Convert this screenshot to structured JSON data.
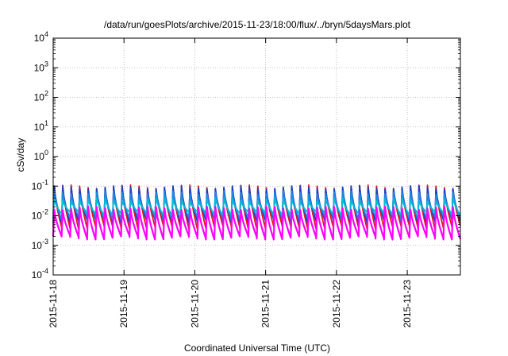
{
  "chart_data": {
    "type": "area",
    "title": "/data/run/goesPlots/archive/2015-11-23/18:00/flux/../bryn/5daysMars.plot",
    "xlabel": "Coordinated Universal Time (UTC)",
    "ylabel": "cSv/day",
    "x_range": [
      "2015-11-18 00:00",
      "2015-11-23 18:00"
    ],
    "x_ticks": [
      "2015-11-18",
      "2015-11-19",
      "2015-11-20",
      "2015-11-21",
      "2015-11-22",
      "2015-11-23"
    ],
    "y_scale": "log",
    "ylim": [
      0.0001,
      10000
    ],
    "y_ticks": [
      {
        "base": "10",
        "exp": "-4"
      },
      {
        "base": "10",
        "exp": "-3"
      },
      {
        "base": "10",
        "exp": "-2"
      },
      {
        "base": "10",
        "exp": "-1"
      },
      {
        "base": "10",
        "exp": "0"
      },
      {
        "base": "10",
        "exp": "1"
      },
      {
        "base": "10",
        "exp": "2"
      },
      {
        "base": "10",
        "exp": "3"
      },
      {
        "base": "10",
        "exp": "4"
      }
    ],
    "grid": true,
    "sawtooth_cycles": 48,
    "series": [
      {
        "color": "#e41a1c",
        "peak": 0.095,
        "trough": 0.004
      },
      {
        "color": "#1f3fbf",
        "peak": 0.09,
        "trough": 0.0065
      },
      {
        "color": "#1e88e5",
        "peak": 0.06,
        "trough": 0.0085
      },
      {
        "color": "#00bcd4",
        "peak": 0.035,
        "trough": 0.012
      },
      {
        "color": "#ff00ff",
        "peak": 0.018,
        "trough": 0.0018
      }
    ]
  }
}
